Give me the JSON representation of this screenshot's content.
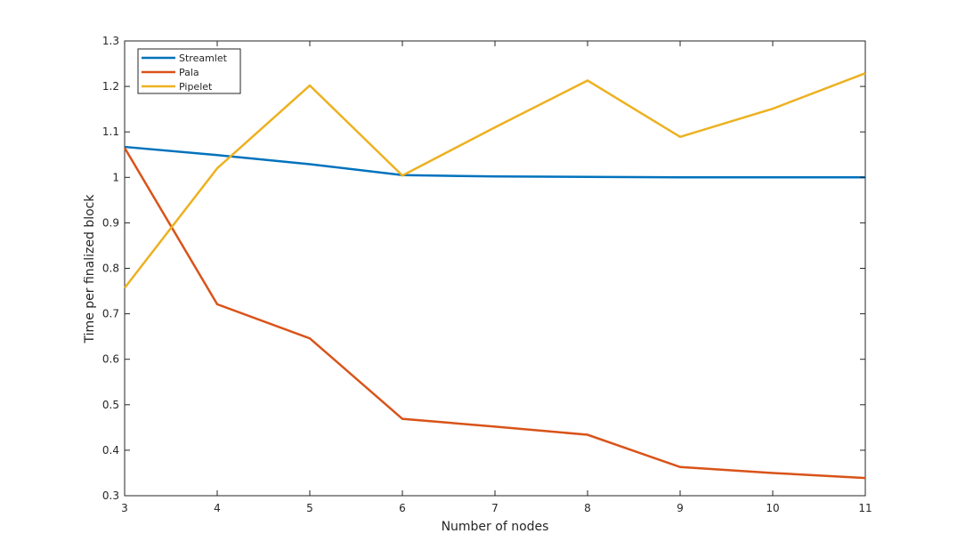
{
  "chart_data": {
    "type": "line",
    "title": "",
    "xlabel": "Number of nodes",
    "ylabel": "Time per finalized block",
    "xlim": [
      3,
      11
    ],
    "ylim": [
      0.3,
      1.3
    ],
    "xticks": [
      3,
      4,
      5,
      6,
      7,
      8,
      9,
      10,
      11
    ],
    "yticks": [
      0.3,
      0.4,
      0.5,
      0.6,
      0.7,
      0.8,
      0.9,
      1,
      1.1,
      1.2,
      1.3
    ],
    "x": [
      3,
      4,
      5,
      6,
      7,
      8,
      9,
      10,
      11
    ],
    "series": [
      {
        "name": "Streamlet",
        "color": "#0072BD",
        "values": [
          1.067,
          1.049,
          1.029,
          1.005,
          1.002,
          1.001,
          1.0,
          1.0,
          1.0
        ]
      },
      {
        "name": "Pala",
        "color": "#D95319",
        "values": [
          1.065,
          0.721,
          0.646,
          0.469,
          0.452,
          0.434,
          0.363,
          0.35,
          0.339
        ]
      },
      {
        "name": "Pipelet",
        "color": "#EDB120",
        "values": [
          0.757,
          1.02,
          1.202,
          1.004,
          1.11,
          1.213,
          1.089,
          1.151,
          1.229
        ]
      }
    ],
    "grid": false,
    "legend_position": "top-left"
  }
}
